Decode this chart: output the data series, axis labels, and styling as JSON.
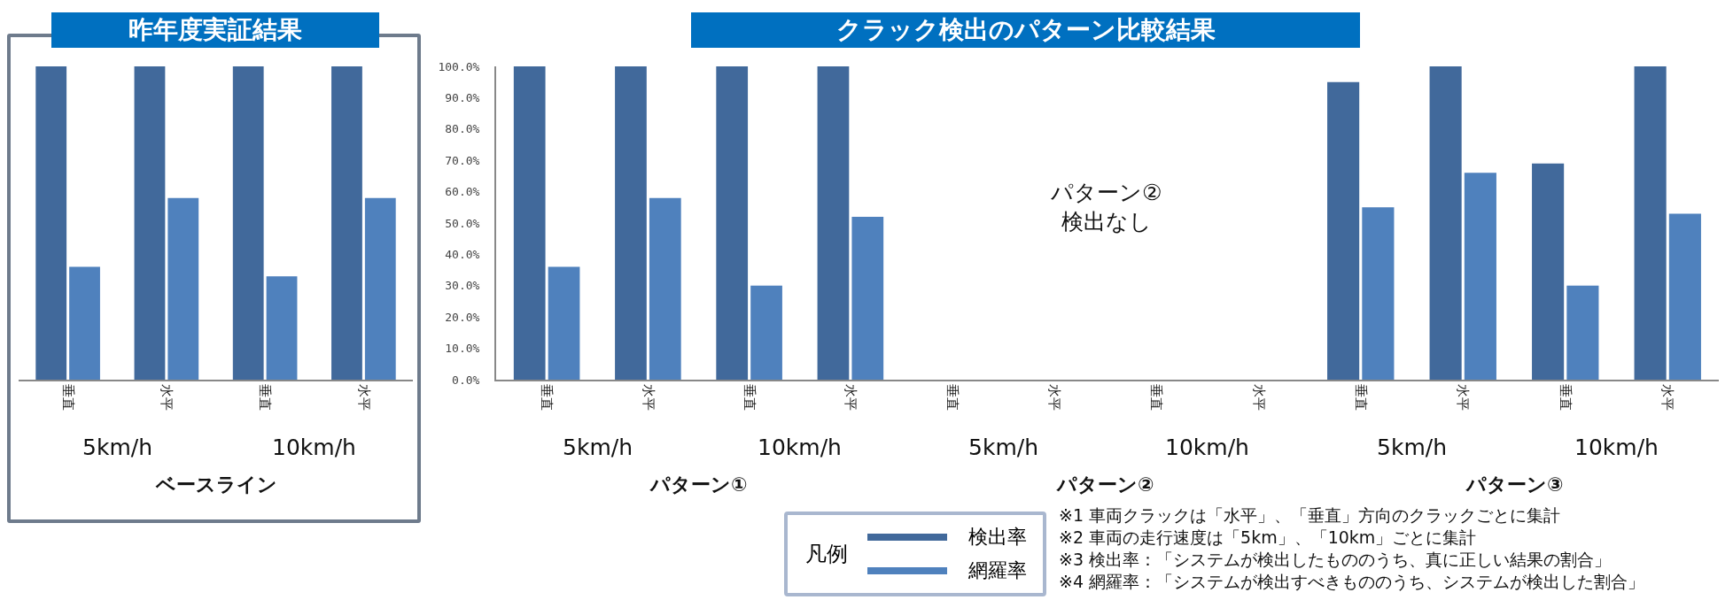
{
  "chart_data": [
    {
      "type": "bar",
      "title": "昨年度実証結果",
      "xlabel": "ベースライン",
      "categories": [
        "垂直",
        "水平",
        "垂直",
        "水平"
      ],
      "annotations": [
        "5km/h",
        "10km/h"
      ],
      "series": [
        {
          "name": "検出率",
          "color": "#41699b",
          "values": [
            100,
            100,
            100,
            100
          ]
        },
        {
          "name": "網羅率",
          "color": "#4f81bd",
          "values": [
            36,
            58,
            33,
            58
          ]
        }
      ],
      "ylim": [
        0,
        100
      ],
      "tick_labels": "x",
      "legend": "bottom",
      "legend_title": "凡例"
    },
    {
      "type": "bar",
      "xlabel": "パターン①",
      "categories": [
        "垂直",
        "水平",
        "垂直",
        "水平"
      ],
      "annotations": [
        "5km/h",
        "10km/h"
      ],
      "series": [
        {
          "color": "#41699b",
          "values": [
            100,
            100,
            100,
            100
          ]
        },
        {
          "color": "#4f81bd",
          "values": [
            36,
            58,
            30,
            52
          ]
        }
      ],
      "ylim": [
        0,
        100
      ],
      "yticks": [
        {
          "value": 0,
          "label": "0.0%"
        },
        {
          "value": 10,
          "label": "10.0%"
        },
        {
          "value": 20,
          "label": "20.0%"
        },
        {
          "value": 30,
          "label": "30.0%"
        },
        {
          "value": 40,
          "label": "40.0%"
        },
        {
          "value": 50,
          "label": "50.0%"
        },
        {
          "value": 60,
          "label": "60.0%"
        },
        {
          "value": 70,
          "label": "70.0%"
        },
        {
          "value": 80,
          "label": "80.0%"
        },
        {
          "value": 90,
          "label": "90.0%"
        },
        {
          "value": 100,
          "label": "100.0%"
        }
      ],
      "tick_labels": "y"
    },
    {
      "type": "bar",
      "title": "クラック検出のパターン比較結果",
      "xlabel": "パターン②",
      "categories": [
        "垂直",
        "水平",
        "垂直",
        "水平"
      ],
      "annotations": [
        "5km/h",
        "10km/h",
        "パターン②\n検出なし"
      ],
      "series": [
        {
          "color": "#41699b",
          "values": [
            null,
            null,
            null,
            null
          ]
        },
        {
          "color": "#4f81bd",
          "values": [
            null,
            null,
            null,
            null
          ]
        }
      ],
      "ylim": [
        0,
        100
      ],
      "tick_labels": "x"
    },
    {
      "type": "bar",
      "xlabel": "パターン③",
      "categories": [
        "垂直",
        "水平",
        "垂直",
        "水平"
      ],
      "annotations": [
        "5km/h",
        "10km/h",
        "※1 車両クラックは「水平」、「垂直」方向のクラックごとに集計",
        "※2 車両の走行速度は「5km」、「10km」ごとに集計",
        "※3 検出率：「システムが検出したもののうち、真に正しい結果の割合」",
        "※4 網羅率：「システムが検出すべきもののうち、システムが検出した割合」"
      ],
      "series": [
        {
          "color": "#41699b",
          "values": [
            95,
            100,
            69,
            100
          ]
        },
        {
          "color": "#4f81bd",
          "values": [
            55,
            66,
            30,
            53
          ]
        }
      ],
      "ylim": [
        0,
        100
      ],
      "tick_labels": "x"
    }
  ]
}
